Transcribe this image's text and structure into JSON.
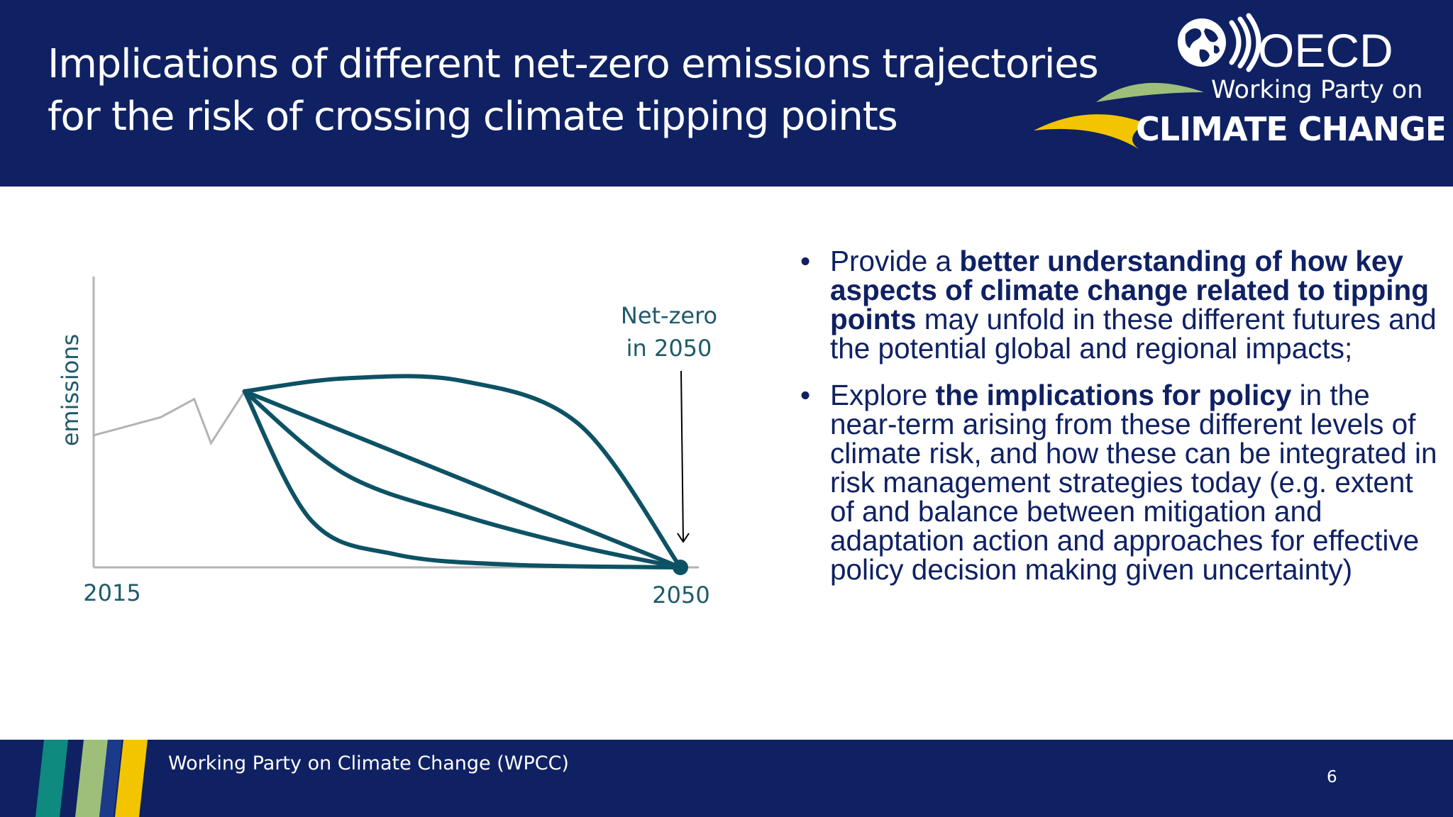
{
  "header": {
    "title_line1": "Implications of different net-zero emissions trajectories",
    "title_line2": "for the risk of crossing climate tipping points"
  },
  "logo": {
    "org": "OECD",
    "sub1": "Working Party on",
    "sub2": "CLIMATE CHANGE",
    "colors": {
      "green": "#9dbf7a",
      "yellow": "#f2c500",
      "globe": "#ffffff"
    }
  },
  "chart_data": {
    "type": "line",
    "ylabel": "emissions",
    "x_start_label": "2015",
    "x_end_label": "2050",
    "annotation_line1": "Net-zero",
    "annotation_line2": "in 2050",
    "x_range": [
      2015,
      2050
    ],
    "historical": {
      "x": [
        2015,
        2019,
        2021,
        2022,
        2024
      ],
      "y": [
        0.51,
        0.58,
        0.65,
        0.48,
        0.68
      ]
    },
    "trajectories": [
      {
        "shape": "concave",
        "x": [
          2024,
          2030,
          2037,
          2044,
          2050
        ],
        "y": [
          0.68,
          0.73,
          0.72,
          0.55,
          0.0
        ]
      },
      {
        "shape": "linear",
        "x": [
          2024,
          2050
        ],
        "y": [
          0.68,
          0.0
        ]
      },
      {
        "shape": "convex",
        "x": [
          2024,
          2030,
          2037,
          2044,
          2050
        ],
        "y": [
          0.68,
          0.36,
          0.2,
          0.08,
          0.0
        ]
      },
      {
        "shape": "steep",
        "x": [
          2024,
          2028,
          2033,
          2040,
          2050
        ],
        "y": [
          0.68,
          0.18,
          0.05,
          0.01,
          0.0
        ]
      }
    ],
    "colors": {
      "trajectory": "#0d5264",
      "historical": "#b3b3b3",
      "axis": "#b3b3b3",
      "label": "#1e5a6a"
    }
  },
  "bullets": [
    [
      {
        "t": "Provide a ",
        "b": false
      },
      {
        "t": "better understanding of how key aspects of climate change related to tipping points",
        "b": true
      },
      {
        "t": " may unfold in these different futures and the potential global and regional impacts;",
        "b": false
      }
    ],
    [
      {
        "t": "Explore ",
        "b": false
      },
      {
        "t": "the implications for policy",
        "b": true
      },
      {
        "t": " in the near-term arising from these different levels of climate risk, and how these can be integrated in risk management strategies today (e.g. extent of and balance between mitigation and adaptation action and approaches for effective policy decision making given uncertainty)",
        "b": false
      }
    ]
  ],
  "footer": {
    "text": "Working Party on Climate Change (WPCC)",
    "page": "6",
    "stripe_colors": [
      "#0e8a7e",
      "#9dbf7a",
      "#1b3a8a",
      "#f2c500"
    ]
  }
}
